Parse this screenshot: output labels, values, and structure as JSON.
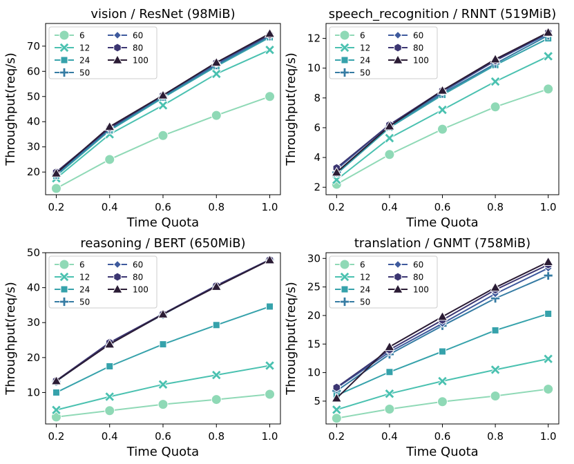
{
  "chart_data": [
    {
      "type": "line",
      "title": "vision / ResNet (98MiB)",
      "xlabel": "Time Quota",
      "ylabel": "Throughput(req/s)",
      "x": [
        0.2,
        0.4,
        0.6,
        0.8,
        1.0
      ],
      "xticks": [
        "0.2",
        "0.4",
        "0.6",
        "0.8",
        "1.0"
      ],
      "ylim": [
        11,
        79
      ],
      "yticks": [
        20,
        30,
        40,
        50,
        60,
        70
      ],
      "series": [
        {
          "name": "6",
          "values": [
            13.5,
            25.0,
            34.5,
            42.5,
            50.0
          ]
        },
        {
          "name": "12",
          "values": [
            17.5,
            35.0,
            46.5,
            59.0,
            68.5
          ]
        },
        {
          "name": "24",
          "values": [
            18.5,
            36.5,
            49.5,
            62.0,
            73.5
          ]
        },
        {
          "name": "50",
          "values": [
            19.0,
            37.0,
            50.0,
            62.5,
            74.0
          ]
        },
        {
          "name": "60",
          "values": [
            19.5,
            37.5,
            50.5,
            63.0,
            74.5
          ]
        },
        {
          "name": "80",
          "values": [
            20.0,
            37.5,
            50.5,
            63.5,
            74.5
          ]
        },
        {
          "name": "100",
          "values": [
            19.5,
            38.0,
            50.5,
            63.5,
            75.0
          ]
        }
      ]
    },
    {
      "type": "line",
      "title": "speech_recognition / RNNT (519MiB)",
      "xlabel": "Time Quota",
      "ylabel": "Throughput(req/s)",
      "x": [
        0.2,
        0.4,
        0.6,
        0.8,
        1.0
      ],
      "xticks": [
        "0.2",
        "0.4",
        "0.6",
        "0.8",
        "1.0"
      ],
      "ylim": [
        1.5,
        13.0
      ],
      "yticks": [
        2,
        4,
        6,
        8,
        10,
        12
      ],
      "series": [
        {
          "name": "6",
          "values": [
            2.2,
            4.2,
            5.9,
            7.4,
            8.6
          ]
        },
        {
          "name": "12",
          "values": [
            2.5,
            5.3,
            7.2,
            9.1,
            10.8
          ]
        },
        {
          "name": "24",
          "values": [
            2.9,
            6.0,
            8.2,
            10.2,
            12.0
          ]
        },
        {
          "name": "50",
          "values": [
            3.0,
            6.1,
            8.3,
            10.3,
            12.2
          ]
        },
        {
          "name": "60",
          "values": [
            3.2,
            6.2,
            8.4,
            10.5,
            12.3
          ]
        },
        {
          "name": "80",
          "values": [
            3.3,
            6.2,
            8.5,
            10.5,
            12.4
          ]
        },
        {
          "name": "100",
          "values": [
            3.0,
            6.1,
            8.5,
            10.6,
            12.4
          ]
        }
      ]
    },
    {
      "type": "line",
      "title": "reasoning / BERT (650MiB)",
      "xlabel": "Time Quota",
      "ylabel": "Throughput(req/s)",
      "x": [
        0.2,
        0.4,
        0.6,
        0.8,
        1.0
      ],
      "xticks": [
        "0.2",
        "0.4",
        "0.6",
        "0.8",
        "1.0"
      ],
      "ylim": [
        1,
        50
      ],
      "yticks": [
        10,
        20,
        30,
        40,
        50
      ],
      "series": [
        {
          "name": "6",
          "values": [
            3.0,
            4.8,
            6.6,
            8.0,
            9.5
          ]
        },
        {
          "name": "12",
          "values": [
            5.0,
            8.8,
            12.3,
            15.0,
            17.7
          ]
        },
        {
          "name": "24",
          "values": [
            10.0,
            17.5,
            23.8,
            29.3,
            34.6
          ]
        },
        {
          "name": "50",
          "values": [
            13.2,
            24.0,
            32.3,
            40.5,
            48.0
          ]
        },
        {
          "name": "60",
          "values": [
            13.3,
            24.2,
            32.5,
            40.6,
            48.0
          ]
        },
        {
          "name": "80",
          "values": [
            13.4,
            24.3,
            32.5,
            40.6,
            48.0
          ]
        },
        {
          "name": "100",
          "values": [
            13.3,
            23.8,
            32.4,
            40.3,
            47.9
          ]
        }
      ]
    },
    {
      "type": "line",
      "title": "translation / GNMT (758MiB)",
      "xlabel": "Time Quota",
      "ylabel": "Throughput(req/s)",
      "x": [
        0.2,
        0.4,
        0.6,
        0.8,
        1.0
      ],
      "xticks": [
        "0.2",
        "0.4",
        "0.6",
        "0.8",
        "1.0"
      ],
      "ylim": [
        1,
        31
      ],
      "yticks": [
        5,
        10,
        15,
        20,
        25,
        30
      ],
      "series": [
        {
          "name": "6",
          "values": [
            2.0,
            3.6,
            4.9,
            5.9,
            7.1
          ]
        },
        {
          "name": "12",
          "values": [
            3.5,
            6.3,
            8.5,
            10.5,
            12.4
          ]
        },
        {
          "name": "24",
          "values": [
            6.0,
            10.1,
            13.7,
            17.4,
            20.3
          ]
        },
        {
          "name": "50",
          "values": [
            6.8,
            13.2,
            18.2,
            23.0,
            27.0
          ]
        },
        {
          "name": "60",
          "values": [
            7.3,
            13.6,
            18.6,
            23.8,
            28.3
          ]
        },
        {
          "name": "80",
          "values": [
            7.4,
            14.0,
            19.2,
            24.5,
            28.9
          ]
        },
        {
          "name": "100",
          "values": [
            5.5,
            14.5,
            19.8,
            24.9,
            29.4
          ]
        }
      ]
    }
  ],
  "series_style": [
    {
      "name": "6",
      "color": "#8fd9b6",
      "marker": "circle"
    },
    {
      "name": "12",
      "color": "#4ac1b0",
      "marker": "x"
    },
    {
      "name": "24",
      "color": "#36a2ab",
      "marker": "square"
    },
    {
      "name": "50",
      "color": "#357ba3",
      "marker": "plus"
    },
    {
      "name": "60",
      "color": "#3e5a9d",
      "marker": "diamond"
    },
    {
      "name": "80",
      "color": "#3c3672",
      "marker": "hexagon"
    },
    {
      "name": "100",
      "color": "#2b1c35",
      "marker": "triangle"
    }
  ]
}
